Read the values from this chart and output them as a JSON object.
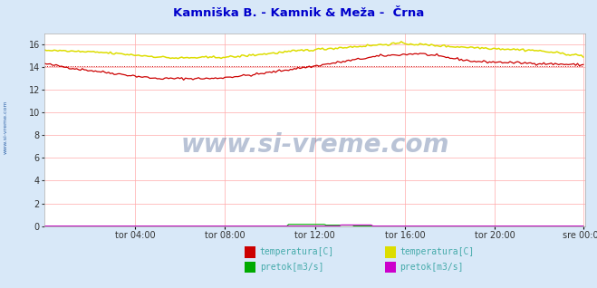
{
  "title": "Kamniška B. - Kamnik & Meža -  Črna",
  "title_color": "#0000cc",
  "bg_color": "#d8e8f8",
  "plot_bg_color": "#ffffff",
  "grid_color": "#ffaaaa",
  "x_labels": [
    "tor 04:00",
    "tor 08:00",
    "tor 12:00",
    "tor 16:00",
    "tor 20:00",
    "sre 00:00"
  ],
  "y_ticks": [
    0,
    2,
    4,
    6,
    8,
    10,
    12,
    14,
    16
  ],
  "ylim": [
    0,
    17
  ],
  "xlim": [
    0,
    288
  ],
  "n_points": 288,
  "watermark": "www.si-vreme.com",
  "watermark_color": "#1a3a7a",
  "watermark_alpha": 0.3,
  "legend_items": [
    {
      "label": "temperatura[C]",
      "color": "#cc0000"
    },
    {
      "label": "pretok[m3/s]",
      "color": "#00aa00"
    },
    {
      "label": "temperatura[C]",
      "color": "#dddd00"
    },
    {
      "label": "pretok[m3/s]",
      "color": "#cc00cc"
    }
  ],
  "legend_text_color": "#44aaaa",
  "sidebar_text": "www.si-vreme.com",
  "sidebar_color": "#3366aa"
}
